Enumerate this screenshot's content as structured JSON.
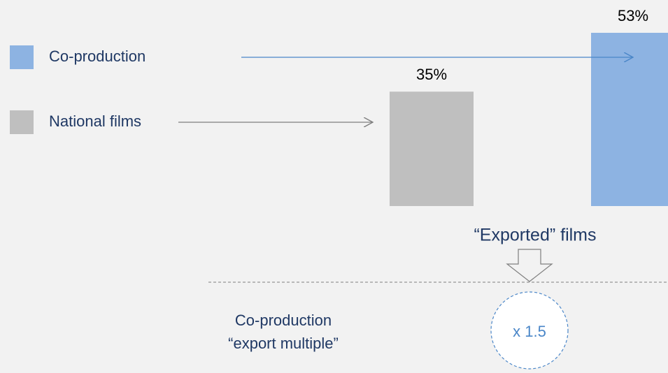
{
  "chart_data": {
    "type": "bar",
    "categories": [
      "“Exported” films"
    ],
    "series": [
      {
        "name": "National films",
        "color": "#bfbfbf",
        "values": [
          35
        ],
        "value_labels": [
          "35%"
        ]
      },
      {
        "name": "Co-production",
        "color": "#8db3e2",
        "values": [
          53
        ],
        "value_labels": [
          "53%"
        ]
      }
    ],
    "annotation": [
      "Co-production",
      "“export multiple”"
    ],
    "multiple_label": "x 1.5"
  }
}
